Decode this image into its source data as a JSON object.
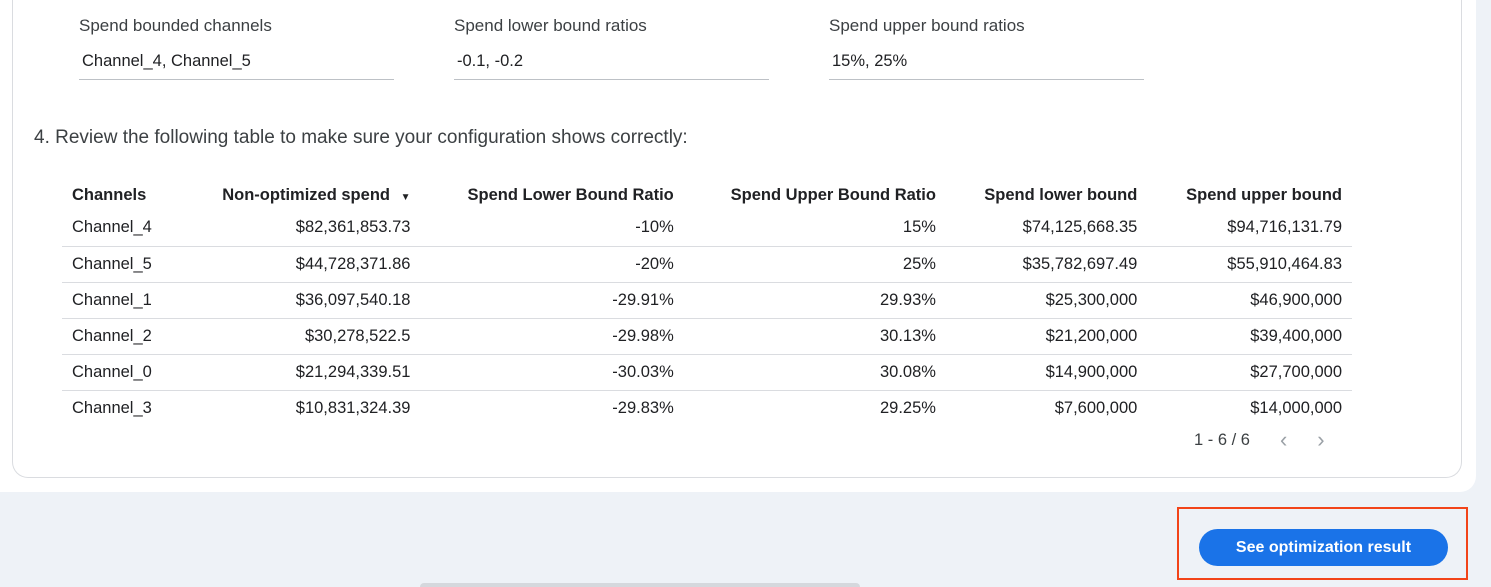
{
  "fields": [
    {
      "label": "Spend bounded channels",
      "value": "Channel_4, Channel_5"
    },
    {
      "label": "Spend lower bound ratios",
      "value": "-0.1, -0.2"
    },
    {
      "label": "Spend upper bound ratios",
      "value": "15%, 25%"
    }
  ],
  "step_text": "4. Review the following table to make sure your configuration shows correctly:",
  "table": {
    "headers": [
      "Channels",
      "Non-optimized spend",
      "Spend Lower Bound Ratio",
      "Spend Upper Bound Ratio",
      "Spend lower bound",
      "Spend upper bound"
    ],
    "sort_icon": "▼",
    "rows": [
      [
        "Channel_4",
        "$82,361,853.73",
        "-10%",
        "15%",
        "$74,125,668.35",
        "$94,716,131.79"
      ],
      [
        "Channel_5",
        "$44,728,371.86",
        "-20%",
        "25%",
        "$35,782,697.49",
        "$55,910,464.83"
      ],
      [
        "Channel_1",
        "$36,097,540.18",
        "-29.91%",
        "29.93%",
        "$25,300,000",
        "$46,900,000"
      ],
      [
        "Channel_2",
        "$30,278,522.5",
        "-29.98%",
        "30.13%",
        "$21,200,000",
        "$39,400,000"
      ],
      [
        "Channel_0",
        "$21,294,339.51",
        "-30.03%",
        "30.08%",
        "$14,900,000",
        "$27,700,000"
      ],
      [
        "Channel_3",
        "$10,831,324.39",
        "-29.83%",
        "29.25%",
        "$7,600,000",
        "$14,000,000"
      ]
    ]
  },
  "pager": {
    "text": "1 - 6 / 6",
    "prev": "‹",
    "next": "›"
  },
  "button_label": "See optimization result",
  "colors": {
    "accent": "#1a73e8",
    "highlight": "#f24419"
  }
}
